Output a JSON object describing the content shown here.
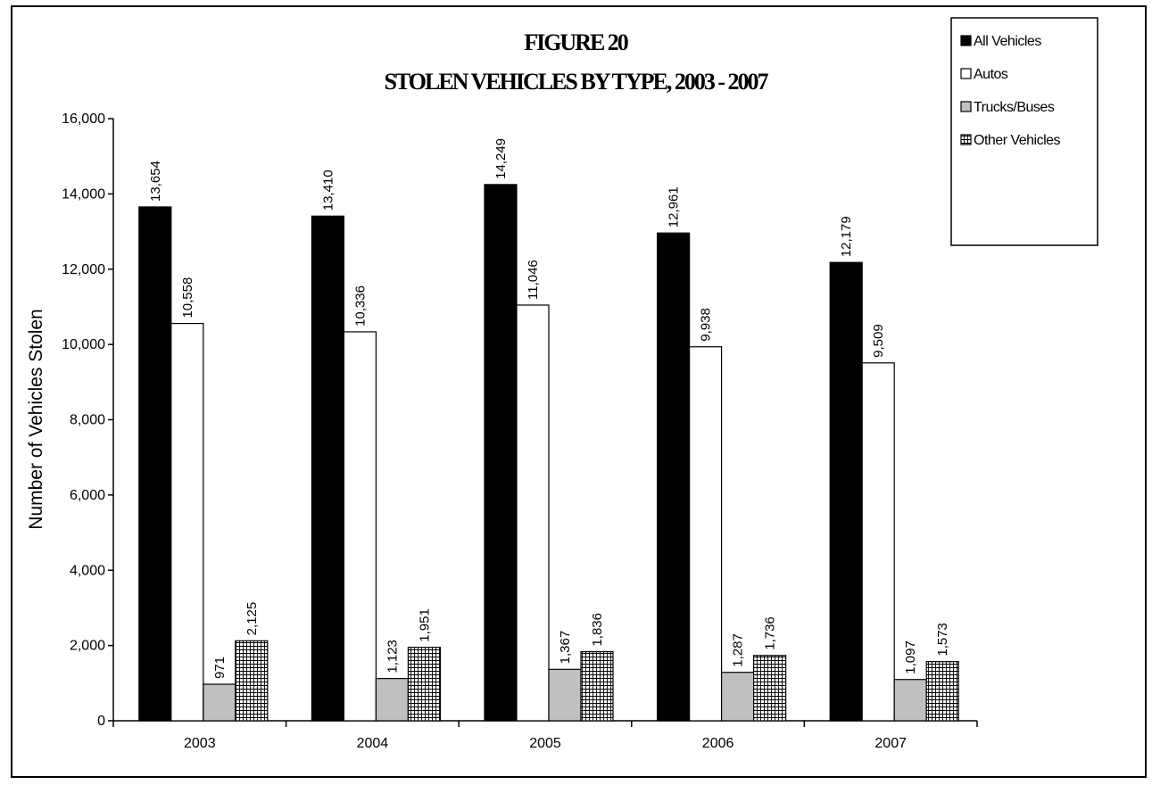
{
  "chart_data": {
    "type": "bar",
    "title": "FIGURE 20",
    "subtitle": "STOLEN VEHICLES BY TYPE, 2003 - 2007",
    "ylabel": "Number of Vehicles Stolen",
    "xlabel": "",
    "categories": [
      "2003",
      "2004",
      "2005",
      "2006",
      "2007"
    ],
    "ylim": [
      0,
      16000
    ],
    "yticks": [
      0,
      2000,
      4000,
      6000,
      8000,
      10000,
      12000,
      14000,
      16000
    ],
    "ytick_labels": [
      "0",
      "2,000",
      "4,000",
      "6,000",
      "8,000",
      "10,000",
      "12,000",
      "14,000",
      "16,000"
    ],
    "grid": false,
    "legend_position": "top-right",
    "series": [
      {
        "name": "All Vehicles",
        "fill": "#000000",
        "values": [
          13654,
          13410,
          14249,
          12961,
          12179
        ],
        "labels": [
          "13,654",
          "13,410",
          "14,249",
          "12,961",
          "12,179"
        ]
      },
      {
        "name": "Autos",
        "fill": "#ffffff",
        "values": [
          10558,
          10336,
          11046,
          9938,
          9509
        ],
        "labels": [
          "10,558",
          "10,336",
          "11,046",
          "9,938",
          "9,509"
        ]
      },
      {
        "name": "Trucks/Buses",
        "fill": "#c0c0c0",
        "values": [
          971,
          1123,
          1367,
          1287,
          1097
        ],
        "labels": [
          "971",
          "1,123",
          "1,367",
          "1,287",
          "1,097"
        ]
      },
      {
        "name": "Other Vehicles",
        "fill": "grid",
        "values": [
          2125,
          1951,
          1836,
          1736,
          1573
        ],
        "labels": [
          "2,125",
          "1,951",
          "1,836",
          "1,736",
          "1,573"
        ]
      }
    ]
  }
}
